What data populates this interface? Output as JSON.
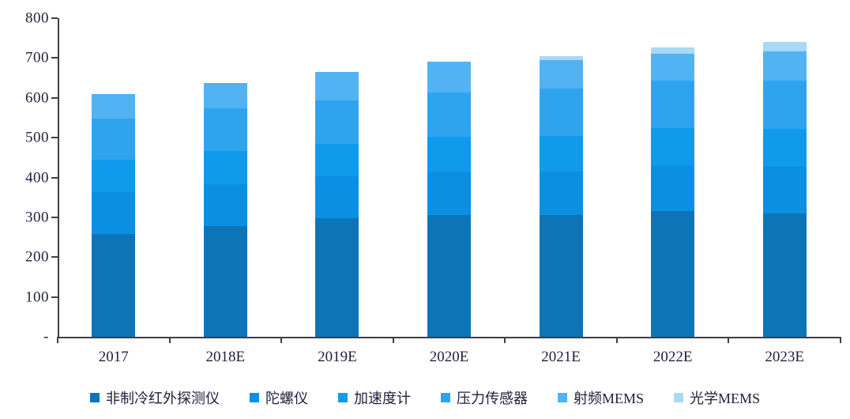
{
  "chart_data": {
    "type": "bar",
    "stacked": true,
    "title": "",
    "xlabel": "",
    "ylabel": "",
    "categories": [
      "2017",
      "2018E",
      "2019E",
      "2020E",
      "2021E",
      "2022E",
      "2023E"
    ],
    "series": [
      {
        "name": "非制冷红外探测仪",
        "color": "#0E74B8",
        "values": [
          258,
          278,
          298,
          305,
          305,
          315,
          310
        ]
      },
      {
        "name": "陀螺仪",
        "color": "#0B8FE3",
        "values": [
          105,
          105,
          105,
          110,
          110,
          115,
          116
        ]
      },
      {
        "name": "加速度计",
        "color": "#109AEC",
        "values": [
          82,
          83,
          81,
          87,
          89,
          94,
          96
        ]
      },
      {
        "name": "压力传感器",
        "color": "#2EA4EF",
        "values": [
          103,
          107,
          109,
          111,
          119,
          119,
          121
        ]
      },
      {
        "name": "射频MEMS",
        "color": "#52B3F3",
        "values": [
          62,
          65,
          72,
          77,
          71,
          67,
          73
        ]
      },
      {
        "name": "光学MEMS",
        "color": "#A8D9F8",
        "values": [
          0,
          0,
          0,
          0,
          10,
          17,
          24
        ]
      }
    ],
    "totals": [
      610,
      638,
      665,
      690,
      704,
      727,
      740
    ],
    "ylim": [
      0,
      800
    ],
    "y_tick_labels": [
      "-",
      "100",
      "200",
      "300",
      "400",
      "500",
      "600",
      "700",
      "800"
    ],
    "y_tick_values": [
      0,
      100,
      200,
      300,
      400,
      500,
      600,
      700,
      800
    ],
    "grid": false,
    "legend_position": "bottom"
  },
  "style": {
    "text_color": "#1F1F3D",
    "axis_color": "#3F3F46",
    "background": "#FFFFFF"
  }
}
